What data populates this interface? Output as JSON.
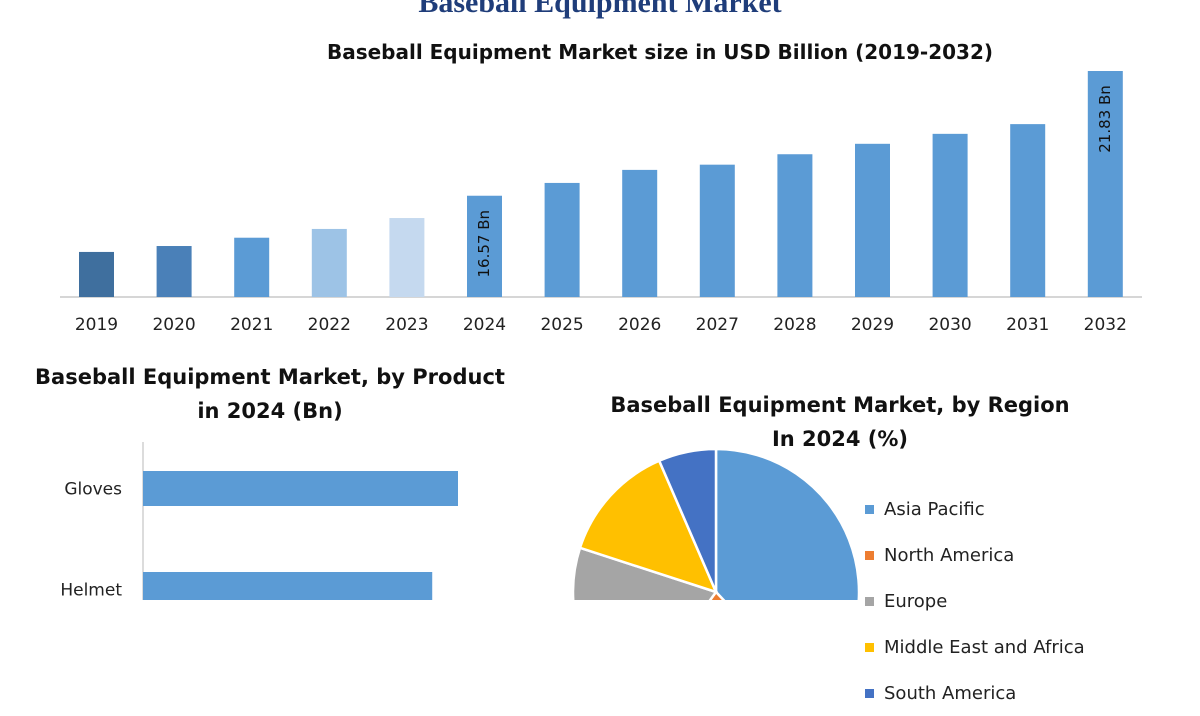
{
  "page_title": "Baseball Equipment Market",
  "chart_data": [
    {
      "type": "bar",
      "title": "Baseball Equipment Market size in USD Billion (2019-2032)",
      "categories": [
        "2019",
        "2020",
        "2021",
        "2022",
        "2023",
        "2024",
        "2025",
        "2026",
        "2027",
        "2028",
        "2029",
        "2030",
        "2031",
        "2032"
      ],
      "values": [
        14.2,
        14.45,
        14.8,
        15.17,
        15.63,
        16.57,
        17.11,
        17.66,
        17.88,
        18.32,
        18.76,
        19.18,
        19.59,
        21.83
      ],
      "data_labels": {
        "5": "16.57 Bn",
        "13": "21.83 Bn"
      },
      "bar_colors": [
        "#3f6f9e",
        "#4a80b8",
        "#5b9bd5",
        "#9dc3e6",
        "#c5d9ef",
        "#5b9bd5",
        "#5b9bd5",
        "#5b9bd5",
        "#5b9bd5",
        "#5b9bd5",
        "#5b9bd5",
        "#5b9bd5",
        "#5b9bd5",
        "#5b9bd5"
      ],
      "ylim": [
        12.3,
        21.83
      ],
      "grid": false
    },
    {
      "type": "bar",
      "orientation": "horizontal",
      "title_line1": "Baseball Equipment Market, by Product",
      "title_line2": "in 2024 (Bn)",
      "categories": [
        "Gloves",
        "Helmet"
      ],
      "values": [
        5.5,
        5.05
      ],
      "xlim": [
        0,
        6
      ],
      "color": "#5b9bd5"
    },
    {
      "type": "pie",
      "title_line1": "Baseball Equipment Market, by Region",
      "title_line2": "In 2024 (%)",
      "labels": [
        "Asia Pacific",
        "North America",
        "Europe",
        "Middle East and Africa",
        "South America"
      ],
      "values": [
        38,
        22,
        20,
        13.5,
        6.5
      ],
      "colors": [
        "#5b9bd5",
        "#ed7d31",
        "#a5a5a5",
        "#ffc000",
        "#4472c4"
      ],
      "legend_placement": "right"
    }
  ]
}
